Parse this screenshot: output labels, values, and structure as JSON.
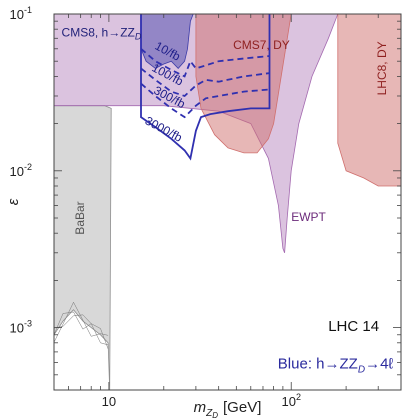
{
  "chart_data": {
    "type": "area",
    "xscale": "log",
    "yscale": "log",
    "xlim": [
      5,
      400
    ],
    "ylim": [
      0.0004,
      0.1
    ],
    "xlabel": "m",
    "xlabel_sub": "Z",
    "xlabel_subsub": "D",
    "xlabel_unit": "[GeV]",
    "ylabel": "ε",
    "grid": false,
    "x_ticks": [
      {
        "value": 10,
        "label": "10"
      },
      {
        "value": 100,
        "label": "10",
        "sup": "2"
      }
    ],
    "y_ticks": [
      {
        "value": 0.001,
        "label": "10",
        "sup": "-3"
      },
      {
        "value": 0.01,
        "label": "10",
        "sup": "-2"
      },
      {
        "value": 0.1,
        "label": "10",
        "sup": "-1"
      }
    ],
    "annotations": [
      {
        "text": "LHC 14",
        "x": 220,
        "y": 0.00095,
        "color": "#111111"
      },
      {
        "text": "Blue: h→ZZ",
        "sub": "D",
        "after": "→4ℓ",
        "x": 175,
        "y": 0.00055,
        "color": "#2b2b9e"
      }
    ],
    "regions": [
      {
        "name": "BaBar",
        "label": "BaBar",
        "color": "#8e8e8e",
        "opacity": 0.35,
        "text_color": "#555555",
        "label_at": [
          7.3,
          0.005
        ],
        "label_rotate": -90,
        "points": [
          [
            5,
            0.0009
          ],
          [
            5.6,
            0.0011
          ],
          [
            6.4,
            0.0013
          ],
          [
            7.2,
            0.0011
          ],
          [
            8,
            0.001
          ],
          [
            9,
            0.0009
          ],
          [
            9.9,
            0.0008
          ],
          [
            10.1,
            0.0004
          ],
          [
            10.3,
            0.025
          ],
          [
            9.5,
            0.026
          ],
          [
            5,
            0.026
          ]
        ]
      },
      {
        "name": "EWPT",
        "label": "EWPT",
        "color": "#a46ab0",
        "opacity": 0.4,
        "text_color": "#6b2a7a",
        "label_at": [
          100,
          0.0048
        ],
        "points": [
          [
            5,
            0.026
          ],
          [
            20,
            0.026
          ],
          [
            40,
            0.024
          ],
          [
            60,
            0.02
          ],
          [
            75,
            0.012
          ],
          [
            85,
            0.006
          ],
          [
            90,
            0.0032
          ],
          [
            92,
            0.003
          ],
          [
            95,
            0.005
          ],
          [
            100,
            0.01
          ],
          [
            110,
            0.02
          ],
          [
            130,
            0.04
          ],
          [
            160,
            0.07
          ],
          [
            180,
            0.1
          ],
          [
            5,
            0.1
          ]
        ]
      },
      {
        "name": "CMS7, DY",
        "label": "CMS7, DY",
        "color": "#d0706e",
        "opacity": 0.5,
        "text_color": "#8e1f1f",
        "label_at": [
          48,
          0.06
        ],
        "points": [
          [
            30,
            0.1
          ],
          [
            30,
            0.04
          ],
          [
            32,
            0.025
          ],
          [
            38,
            0.017
          ],
          [
            45,
            0.014
          ],
          [
            55,
            0.013
          ],
          [
            65,
            0.013
          ],
          [
            75,
            0.016
          ],
          [
            80,
            0.02
          ],
          [
            100,
            0.1
          ]
        ]
      },
      {
        "name": "LHC8, DY",
        "label": "LHC8, DY",
        "color": "#d0706e",
        "opacity": 0.5,
        "text_color": "#8e1f1f",
        "label_at": [
          330,
          0.045
        ],
        "label_rotate": -90,
        "points": [
          [
            180,
            0.1
          ],
          [
            180,
            0.015
          ],
          [
            200,
            0.01
          ],
          [
            250,
            0.009
          ],
          [
            300,
            0.008
          ],
          [
            400,
            0.008
          ],
          [
            400,
            0.1
          ]
        ]
      },
      {
        "name": "CMS8, h→ZZD",
        "label": "CMS8, h→ZZ",
        "label_sub": "D",
        "color": "#3c3ca8",
        "opacity": 0.45,
        "text_color": "#22227a",
        "label_at": [
          5.5,
          0.072
        ],
        "points": [
          [
            15,
            0.1
          ],
          [
            15,
            0.06
          ],
          [
            16,
            0.05
          ],
          [
            18,
            0.045
          ],
          [
            20,
            0.048
          ],
          [
            22,
            0.05
          ],
          [
            24,
            0.045
          ],
          [
            26,
            0.05
          ],
          [
            27,
            0.06
          ],
          [
            28,
            0.09
          ],
          [
            29,
            0.1
          ]
        ]
      }
    ],
    "projections": [
      {
        "name": "10/fb",
        "label": "10/fb",
        "label_at": [
          20.5,
          0.055
        ],
        "label_rotate": 28,
        "color": "#3030b0",
        "dashed": true,
        "points": [
          [
            15,
            0.06
          ],
          [
            18,
            0.05
          ],
          [
            22,
            0.044
          ],
          [
            26,
            0.04
          ],
          [
            28,
            0.05
          ],
          [
            30,
            0.045
          ],
          [
            34,
            0.047
          ],
          [
            40,
            0.05
          ],
          [
            55,
            0.052
          ],
          [
            76,
            0.054
          ]
        ]
      },
      {
        "name": "100/fb",
        "label": "100/fb",
        "label_at": [
          20.5,
          0.039
        ],
        "label_rotate": 28,
        "color": "#3030b0",
        "dashed": true,
        "points": [
          [
            15,
            0.045
          ],
          [
            18,
            0.038
          ],
          [
            22,
            0.032
          ],
          [
            26,
            0.03
          ],
          [
            30,
            0.035
          ],
          [
            34,
            0.038
          ],
          [
            40,
            0.037
          ],
          [
            55,
            0.04
          ],
          [
            76,
            0.042
          ]
        ]
      },
      {
        "name": "300/fb",
        "label": "300/fb",
        "label_at": [
          21,
          0.028
        ],
        "label_rotate": 28,
        "color": "#3030b0",
        "dashed": true,
        "points": [
          [
            15,
            0.036
          ],
          [
            18,
            0.03
          ],
          [
            22,
            0.025
          ],
          [
            26,
            0.022
          ],
          [
            30,
            0.026
          ],
          [
            34,
            0.029
          ],
          [
            40,
            0.03
          ],
          [
            55,
            0.032
          ],
          [
            76,
            0.033
          ]
        ]
      },
      {
        "name": "3000/fb",
        "label": "3000/fb",
        "label_at": [
          19.5,
          0.0175
        ],
        "label_rotate": 28,
        "color": "#3030b0",
        "dashed": false,
        "points": [
          [
            15,
            0.1
          ],
          [
            15,
            0.022
          ],
          [
            18,
            0.019
          ],
          [
            22,
            0.016
          ],
          [
            26,
            0.0135
          ],
          [
            28,
            0.012
          ],
          [
            30,
            0.018
          ],
          [
            32,
            0.022
          ],
          [
            36,
            0.023
          ],
          [
            45,
            0.024
          ],
          [
            60,
            0.025
          ],
          [
            76,
            0.025
          ],
          [
            76,
            0.1
          ]
        ]
      }
    ]
  }
}
